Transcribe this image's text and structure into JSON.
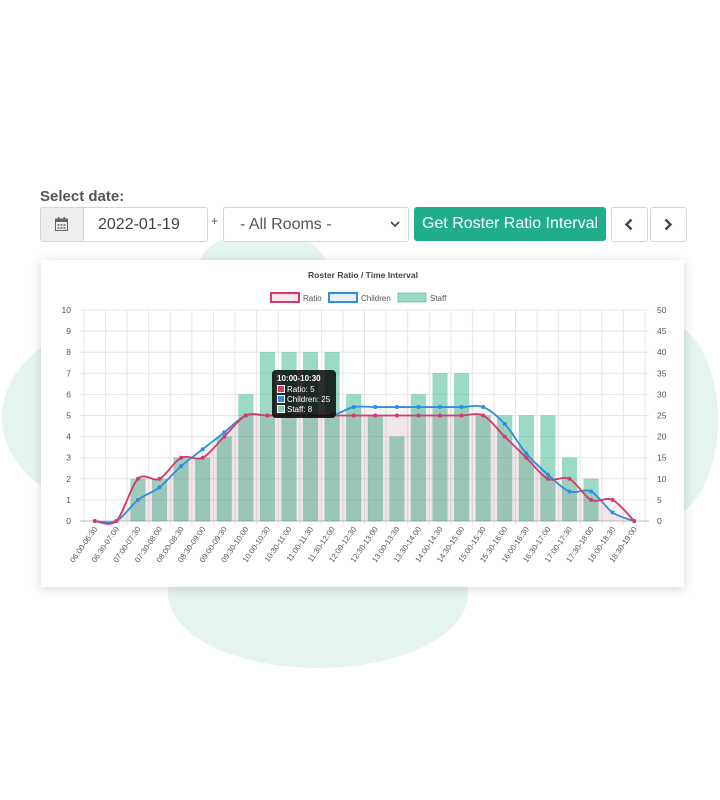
{
  "controls": {
    "select_date_label": "Select date:",
    "date_value": "2022-01-19",
    "plus_separator": "+",
    "room_select_value": "- All Rooms -",
    "get_button_label": "Get Roster Ratio Interval",
    "calendar_icon": "calendar-icon",
    "prev_icon": "chevron-left-icon",
    "next_icon": "chevron-right-icon"
  },
  "colors": {
    "accent": "#1fad8c",
    "ratio": "#d63a6a",
    "children": "#2e8fdc",
    "staff": "#82cdb3",
    "background_blob": "#e6f4ef"
  },
  "chart_data": {
    "type": "bar",
    "title": "Roster Ratio / Time Interval",
    "legend_position": "top",
    "grid": true,
    "categories": [
      "06:00-06:30",
      "06:30-07:00",
      "07:00-07:30",
      "07:30-08:00",
      "08:00-08:30",
      "08:30-09:00",
      "09:00-09:30",
      "09:30-10:00",
      "10:00-10:30",
      "10:30-11:00",
      "11:00-11:30",
      "11:30-12:00",
      "12:00-12:30",
      "12:30-13:00",
      "13:00-13:30",
      "13:30-14:00",
      "14:00-14:30",
      "14:30-15:00",
      "15:00-15:30",
      "15:30-16:00",
      "16:00-16:30",
      "16:30-17:00",
      "17:00-17:30",
      "17:30-18:00",
      "18:00-18:30",
      "18:30-19:00"
    ],
    "y_left": {
      "min": 0,
      "max": 10,
      "ticks": [
        "0",
        "1",
        "2",
        "3",
        "4",
        "5",
        "6",
        "7",
        "8",
        "9",
        "10"
      ]
    },
    "y_right": {
      "min": 0,
      "max": 50,
      "ticks": [
        "0",
        "5",
        "10",
        "15",
        "20",
        "25",
        "30",
        "35",
        "40",
        "45",
        "50"
      ]
    },
    "series": [
      {
        "name": "Ratio",
        "type": "line",
        "axis": "left",
        "color": "#d63a6a",
        "values": [
          0,
          0,
          2,
          2,
          3,
          3,
          4,
          5,
          5,
          5,
          5,
          5,
          5,
          5,
          5,
          5,
          5,
          5,
          5,
          4,
          3,
          2,
          2,
          1,
          1,
          0
        ]
      },
      {
        "name": "Children",
        "type": "line",
        "axis": "right",
        "color": "#2e8fdc",
        "values": [
          0,
          0,
          5,
          8,
          13,
          17,
          21,
          25,
          25,
          25,
          25,
          25,
          27,
          27,
          27,
          27,
          27,
          27,
          27,
          23,
          16,
          11,
          7,
          7,
          2,
          0
        ]
      },
      {
        "name": "Staff",
        "type": "bar",
        "axis": "left",
        "color": "#82cdb3",
        "values": [
          0,
          0,
          2,
          2,
          3,
          3,
          4,
          6,
          8,
          8,
          8,
          8,
          6,
          5,
          4,
          6,
          7,
          7,
          5,
          5,
          5,
          5,
          3,
          2,
          0,
          0
        ]
      }
    ],
    "tooltip": {
      "title": "10:00-10:30",
      "lines": [
        "Ratio: 5",
        "Children: 25",
        "Staff: 8"
      ]
    }
  }
}
